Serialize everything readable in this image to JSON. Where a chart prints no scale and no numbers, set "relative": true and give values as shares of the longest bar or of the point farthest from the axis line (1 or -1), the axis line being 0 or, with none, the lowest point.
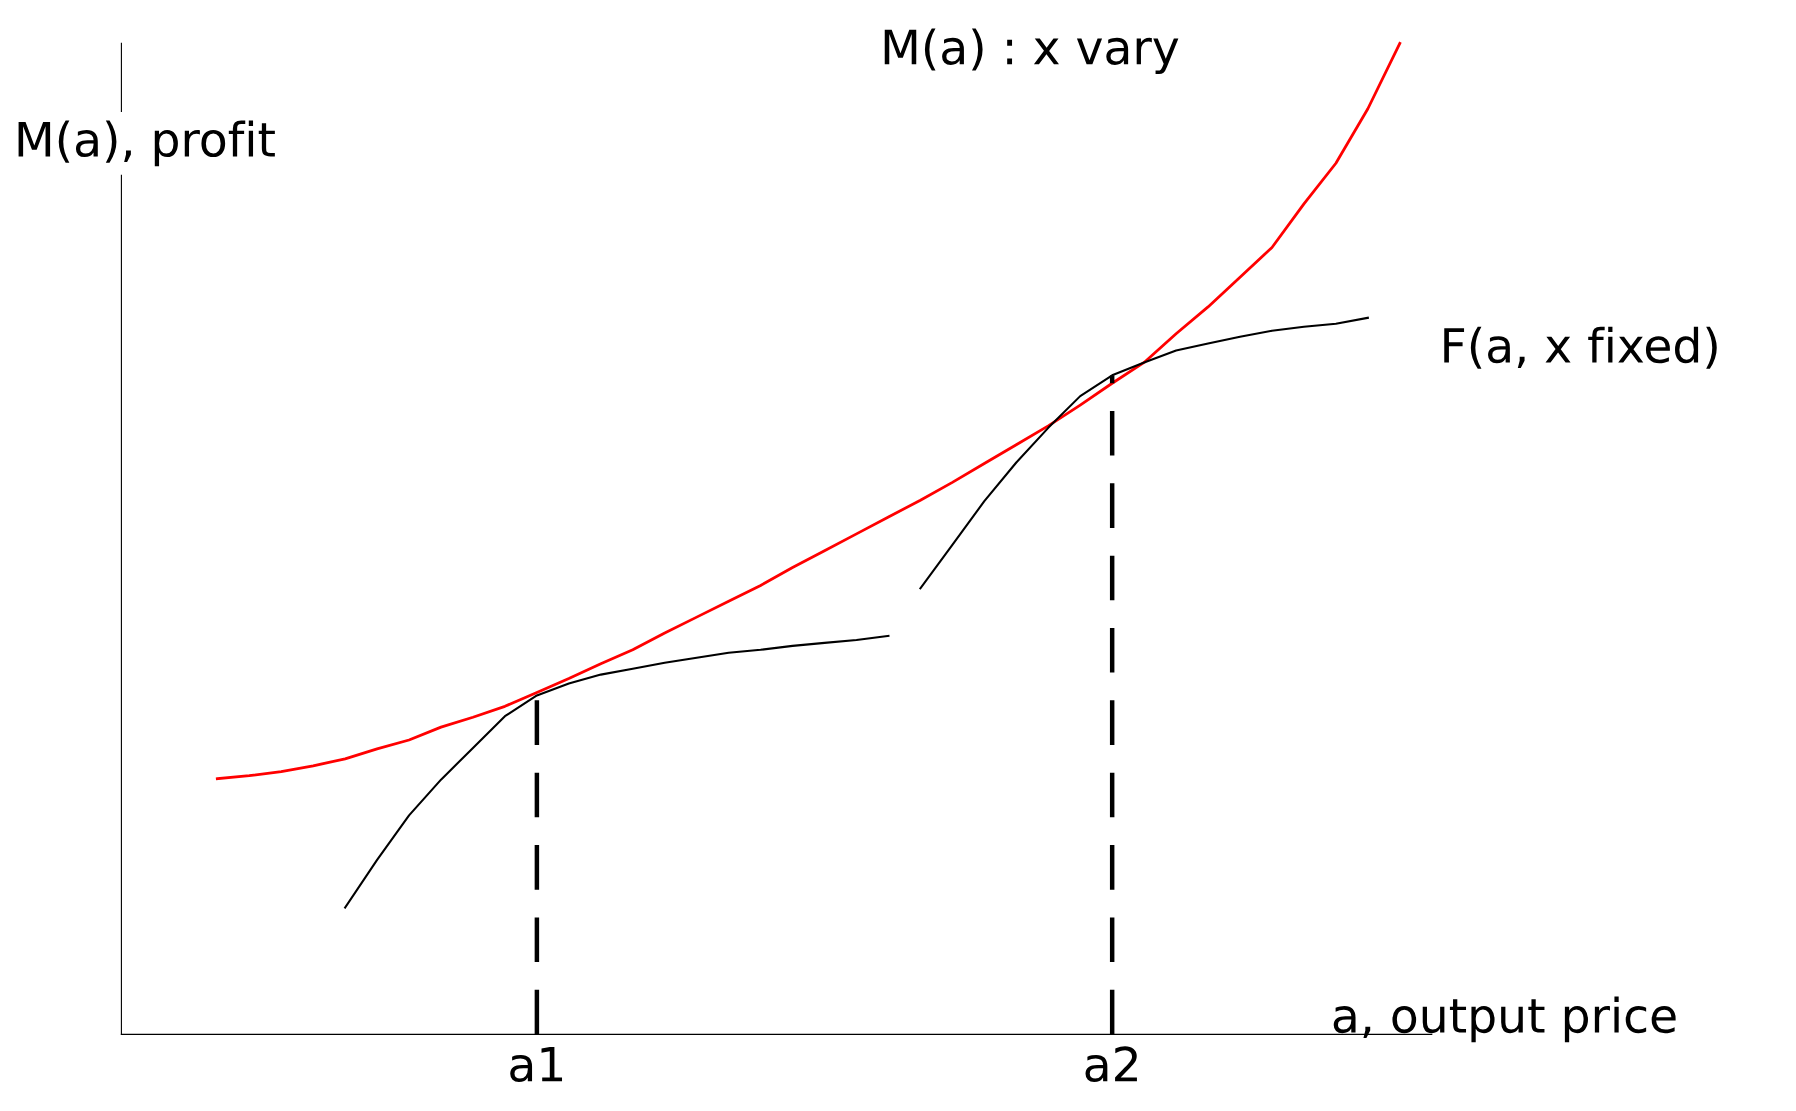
{
  "chart_data": {
    "type": "line",
    "relative": true,
    "xlabel": "a, output price",
    "ylabel": "M(a), profit",
    "categories": [
      null,
      null,
      null,
      null,
      null,
      null,
      null,
      null,
      null,
      null,
      null,
      null,
      null,
      "a1",
      null,
      null,
      null,
      null,
      null,
      null,
      null,
      null,
      null,
      null,
      null,
      null,
      null,
      null,
      null,
      null,
      null,
      "a2",
      null,
      null,
      null,
      null,
      null,
      null,
      null,
      null,
      null,
      null
    ],
    "series": [
      {
        "color": "#ff0000",
        "values": [
          null,
          null,
          null,
          0.258,
          0.261,
          0.265,
          0.271,
          0.278,
          0.288,
          0.297,
          0.31,
          0.32,
          0.331,
          0.345,
          0.359,
          0.374,
          0.388,
          0.405,
          0.421,
          0.437,
          0.453,
          0.471,
          0.488,
          0.505,
          0.522,
          0.539,
          0.557,
          0.576,
          0.595,
          0.614,
          0.635,
          0.657,
          0.678,
          0.707,
          0.734,
          0.764,
          0.794,
          0.838,
          0.879,
          0.934,
          1.0,
          null
        ]
      },
      {
        "color": "#000000",
        "values": [
          null,
          null,
          null,
          null,
          null,
          null,
          null,
          0.128,
          0.176,
          0.221,
          0.257,
          0.289,
          0.321,
          0.342,
          0.354,
          0.363,
          0.369,
          0.375,
          0.38,
          0.385,
          0.388,
          0.392,
          0.395,
          0.398,
          0.402,
          null,
          null,
          null,
          null,
          null,
          null,
          null,
          null,
          null,
          null,
          null,
          null,
          null,
          null,
          null,
          null,
          null
        ]
      },
      {
        "color": "#000000",
        "values": [
          null,
          null,
          null,
          null,
          null,
          null,
          null,
          null,
          null,
          null,
          null,
          null,
          null,
          null,
          null,
          null,
          null,
          null,
          null,
          null,
          null,
          null,
          null,
          null,
          null,
          0.45,
          0.494,
          0.538,
          0.577,
          0.612,
          0.644,
          0.665,
          0.678,
          0.69,
          0.697,
          0.704,
          0.71,
          0.714,
          0.717,
          0.723,
          null,
          null
        ]
      },
      {
        "type": "bar",
        "color": "#000000",
        "line_style": "dashed",
        "values": [
          null,
          null,
          null,
          null,
          null,
          null,
          null,
          null,
          null,
          null,
          null,
          null,
          null,
          0.342,
          null,
          null,
          null,
          null,
          null,
          null,
          null,
          null,
          null,
          null,
          null,
          null,
          null,
          null,
          null,
          null,
          null,
          0.665,
          null,
          null,
          null,
          null,
          null,
          null,
          null,
          null,
          null,
          null
        ]
      }
    ],
    "annotations": [
      "M(a) : x vary",
      "F(a, x fixed)"
    ],
    "grid": false,
    "legend": false
  }
}
